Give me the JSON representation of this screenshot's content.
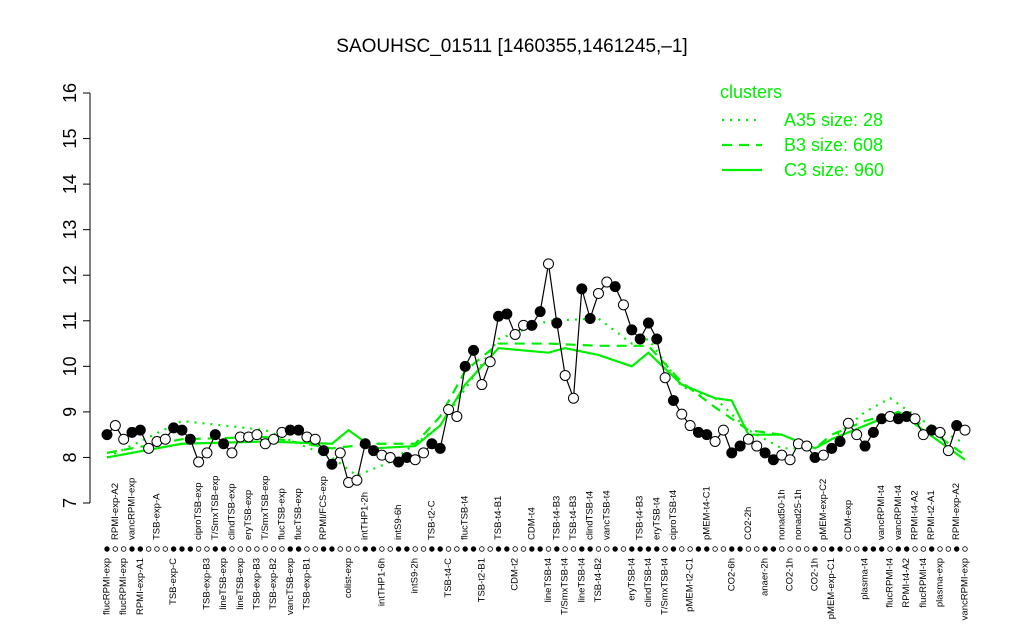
{
  "chart_data": {
    "type": "line",
    "title": "SAOUHSC_01511 [1460355,1461245,–1]",
    "ylim": [
      7,
      16
    ],
    "yticks": [
      7,
      8,
      9,
      10,
      11,
      12,
      13,
      14,
      15,
      16
    ],
    "categories": [
      "flucRPMI-exp",
      "RPMI-exp-A2",
      "flucRPMI-exp",
      "vancRPMI-exp",
      "RPMI-exp-A1",
      null,
      "TSB-exp-A",
      null,
      "TSB-exp-C",
      null,
      null,
      "ciproTSB-exp",
      "TSB-exp-B3",
      "T/SmxTSB-exp",
      "lineTSB-exp",
      "clindTSB-exp",
      "lineTSB-exp",
      "eryTSB-exp",
      "TSB-exp-B3",
      "T/SmxTSB-exp",
      "TSB-exp-B2",
      "flucTSB-exp",
      "vancTSB-exp",
      "flucTSB-exp",
      "TSB-exp-B1",
      null,
      "RPMI/FCS-exp",
      null,
      null,
      "colist-exp",
      null,
      "intTHP1-2h",
      null,
      "intTHP1-6h",
      null,
      "intS9-6h",
      null,
      "intS9-2h",
      null,
      "TSB-t2-C",
      null,
      "TSB-t4-C",
      null,
      "flucTSB-t4",
      null,
      "TSB-t2-B1",
      null,
      "TSB-t4-B1",
      null,
      "CDM-t2",
      null,
      "CDM-t4",
      null,
      "lineTSB-t4",
      "TSB-t4-B3",
      "T/SmxTSB-t4",
      "TSB-t4-B3",
      "lineTSB-t4",
      "clindTSB-t4",
      "TSB-t4-B2",
      "vancTSB-t4",
      null,
      null,
      "eryTSB-t4",
      "TSB-t4-B3",
      "clindTSB-t4",
      "eryTSB-t4",
      "T/SmxTSB-t4",
      "ciproTSB-t4",
      null,
      "pMEM-t2-C1",
      null,
      "pMEM-t4-C1",
      null,
      null,
      "CO2-6h",
      null,
      "CO2-2h",
      null,
      "anaer-2h",
      null,
      "nonad50-1h",
      "CO2-1h",
      "nonad25-1h",
      null,
      "CO2-1h",
      "pMEM-exp-C2",
      "pMEM-exp-C1",
      null,
      "CDM-exp",
      null,
      "plasma-t4",
      null,
      "vancRPMI-t4",
      "flucRPMI-t4",
      "vancRPMI-t4",
      "RPMI-t4-A2",
      "RPMI-t4-A2",
      "flucRPMI-t4",
      "RPMI-t2-A1",
      "plasma-exp",
      null,
      "RPMI-exp-A2",
      "vancRPMI-exp"
    ],
    "values": [
      8.5,
      8.7,
      8.4,
      8.55,
      8.6,
      8.2,
      8.35,
      8.4,
      8.65,
      8.6,
      8.4,
      7.9,
      8.1,
      8.5,
      8.3,
      8.1,
      8.45,
      8.45,
      8.5,
      8.3,
      8.4,
      8.55,
      8.6,
      8.6,
      8.45,
      8.4,
      8.15,
      7.85,
      8.1,
      7.45,
      7.5,
      8.3,
      8.15,
      8.05,
      8.0,
      7.9,
      8.0,
      7.95,
      8.1,
      8.3,
      8.2,
      9.05,
      8.9,
      10.0,
      10.35,
      9.6,
      10.1,
      11.1,
      11.15,
      10.7,
      10.9,
      10.9,
      11.2,
      12.25,
      10.95,
      9.8,
      9.3,
      11.7,
      11.05,
      11.6,
      11.85,
      11.75,
      11.35,
      10.8,
      10.6,
      10.95,
      10.6,
      9.75,
      9.25,
      8.95,
      8.7,
      8.55,
      8.5,
      8.35,
      8.6,
      8.1,
      8.25,
      8.4,
      8.25,
      8.1,
      7.95,
      8.05,
      7.95,
      8.3,
      8.25,
      8.0,
      8.05,
      8.2,
      8.35,
      8.75,
      8.5,
      8.25,
      8.55,
      8.85,
      8.9,
      8.85,
      8.9,
      8.85,
      8.5,
      8.6,
      8.55,
      8.15,
      8.7,
      8.6
    ],
    "filled": [
      true,
      false,
      false,
      true,
      true,
      false,
      false,
      false,
      true,
      true,
      true,
      false,
      false,
      true,
      true,
      false,
      false,
      false,
      false,
      false,
      false,
      false,
      true,
      true,
      false,
      false,
      true,
      true,
      false,
      false,
      false,
      true,
      true,
      false,
      false,
      true,
      true,
      false,
      false,
      true,
      true,
      false,
      false,
      true,
      true,
      false,
      false,
      true,
      true,
      false,
      false,
      true,
      true,
      false,
      true,
      false,
      false,
      true,
      true,
      false,
      false,
      true,
      false,
      true,
      true,
      true,
      true,
      false,
      true,
      false,
      false,
      true,
      true,
      false,
      false,
      true,
      true,
      false,
      false,
      true,
      true,
      false,
      false,
      false,
      false,
      true,
      false,
      true,
      true,
      false,
      false,
      true,
      true,
      true,
      false,
      true,
      true,
      false,
      false,
      true,
      false,
      false,
      true,
      false
    ],
    "line_color": "#000000",
    "legend_title": "clusters",
    "series": [
      {
        "name": "A35 size: 28",
        "color": "#00ee00",
        "dash": "dotted",
        "x": [
          1,
          10,
          20,
          28,
          31,
          35,
          38,
          41,
          44,
          48,
          54,
          60,
          64,
          66,
          70,
          74,
          78,
          82,
          86,
          88,
          92,
          95,
          99,
          104
        ],
        "values": [
          8.0,
          8.8,
          8.6,
          8.0,
          7.6,
          7.9,
          8.3,
          8.7,
          9.5,
          10.6,
          11.0,
          11.05,
          10.5,
          10.6,
          9.55,
          9.3,
          8.6,
          8.2,
          8.2,
          8.4,
          9.0,
          9.3,
          8.8,
          8.3
        ]
      },
      {
        "name": "B3 size: 608",
        "color": "#00ee00",
        "dash": "dashed",
        "x": [
          1,
          10,
          20,
          28,
          33,
          38,
          41,
          44,
          48,
          54,
          60,
          66,
          70,
          74,
          78,
          82,
          86,
          88,
          92,
          96,
          99,
          104
        ],
        "values": [
          8.1,
          8.4,
          8.45,
          8.2,
          8.3,
          8.3,
          8.9,
          9.9,
          10.5,
          10.5,
          10.45,
          10.45,
          9.65,
          9.1,
          8.6,
          8.5,
          8.2,
          8.5,
          8.8,
          9.0,
          8.7,
          8.05
        ]
      },
      {
        "name": "C3 size: 960",
        "color": "#00ee00",
        "dash": "solid",
        "x": [
          1,
          10,
          20,
          28,
          30,
          33,
          38,
          41,
          44,
          48,
          54,
          56,
          60,
          64,
          66,
          70,
          74,
          76,
          78,
          82,
          86,
          88,
          92,
          96,
          99,
          104
        ],
        "values": [
          8.0,
          8.3,
          8.35,
          8.3,
          8.6,
          8.2,
          8.25,
          8.7,
          9.6,
          10.4,
          10.3,
          10.4,
          10.25,
          10.0,
          10.3,
          9.6,
          9.3,
          9.25,
          8.5,
          8.5,
          8.2,
          8.4,
          8.7,
          9.0,
          8.6,
          7.95
        ]
      }
    ]
  }
}
